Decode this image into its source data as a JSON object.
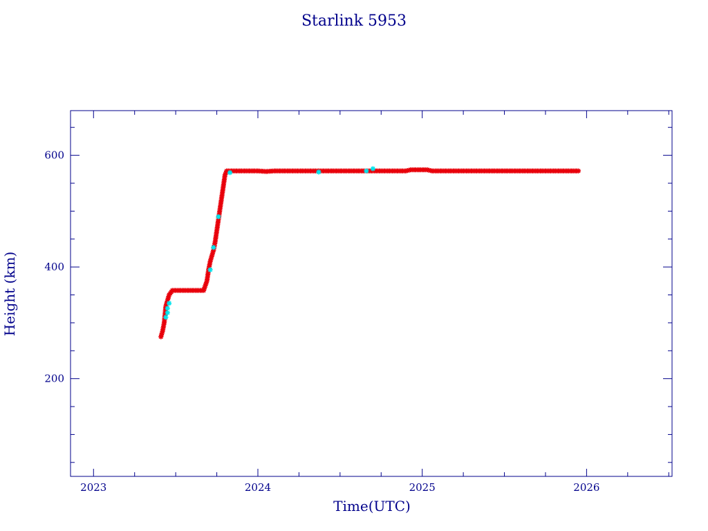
{
  "chart_data": {
    "type": "scatter",
    "title": "Starlink 5953",
    "xlabel": "Time(UTC)",
    "ylabel": "Height (km)",
    "xlim": [
      2022.86,
      2026.52
    ],
    "ylim": [
      25,
      680
    ],
    "x_ticks": [
      2023,
      2024,
      2025,
      2026
    ],
    "x_tick_labels": [
      "2023",
      "2024",
      "2025",
      "2026"
    ],
    "y_ticks": [
      200,
      400,
      600
    ],
    "y_tick_labels": [
      "200",
      "400",
      "600"
    ],
    "x_minor_step": 0.25,
    "y_minor_step": 50,
    "grid": false,
    "series": [
      {
        "color": "#e8000b",
        "marker": "star",
        "points": [
          [
            2023.41,
            275
          ],
          [
            2023.42,
            285
          ],
          [
            2023.43,
            300
          ],
          [
            2023.44,
            330
          ],
          [
            2023.46,
            350
          ],
          [
            2023.48,
            358
          ],
          [
            2023.52,
            358
          ],
          [
            2023.56,
            358
          ],
          [
            2023.6,
            358
          ],
          [
            2023.64,
            358
          ],
          [
            2023.67,
            358
          ],
          [
            2023.69,
            375
          ],
          [
            2023.7,
            395
          ],
          [
            2023.71,
            410
          ],
          [
            2023.73,
            430
          ],
          [
            2023.74,
            445
          ],
          [
            2023.75,
            465
          ],
          [
            2023.76,
            485
          ],
          [
            2023.77,
            505
          ],
          [
            2023.78,
            525
          ],
          [
            2023.79,
            545
          ],
          [
            2023.8,
            565
          ],
          [
            2023.81,
            572
          ],
          [
            2023.85,
            572
          ],
          [
            2023.9,
            572
          ],
          [
            2023.95,
            572
          ],
          [
            2024.0,
            572
          ],
          [
            2024.05,
            571
          ],
          [
            2024.1,
            572
          ],
          [
            2024.15,
            572
          ],
          [
            2024.2,
            572
          ],
          [
            2024.25,
            572
          ],
          [
            2024.3,
            572
          ],
          [
            2024.35,
            572
          ],
          [
            2024.4,
            572
          ],
          [
            2024.45,
            572
          ],
          [
            2024.5,
            572
          ],
          [
            2024.55,
            572
          ],
          [
            2024.6,
            572
          ],
          [
            2024.65,
            572
          ],
          [
            2024.7,
            572
          ],
          [
            2024.75,
            572
          ],
          [
            2024.8,
            572
          ],
          [
            2024.85,
            572
          ],
          [
            2024.9,
            572
          ],
          [
            2024.93,
            574
          ],
          [
            2024.97,
            574
          ],
          [
            2025.0,
            574
          ],
          [
            2025.03,
            574
          ],
          [
            2025.06,
            572
          ],
          [
            2025.1,
            572
          ],
          [
            2025.15,
            572
          ],
          [
            2025.2,
            572
          ],
          [
            2025.25,
            572
          ],
          [
            2025.3,
            572
          ],
          [
            2025.35,
            572
          ],
          [
            2025.4,
            572
          ],
          [
            2025.45,
            572
          ],
          [
            2025.5,
            572
          ],
          [
            2025.55,
            572
          ],
          [
            2025.6,
            572
          ],
          [
            2025.65,
            572
          ],
          [
            2025.7,
            572
          ],
          [
            2025.75,
            572
          ],
          [
            2025.8,
            572
          ],
          [
            2025.85,
            572
          ],
          [
            2025.9,
            572
          ],
          [
            2025.95,
            572
          ]
        ]
      },
      {
        "color": "#00e5ee",
        "marker": "star",
        "points": [
          [
            2023.44,
            310
          ],
          [
            2023.45,
            318
          ],
          [
            2023.45,
            326
          ],
          [
            2023.46,
            335
          ],
          [
            2023.71,
            395
          ],
          [
            2023.73,
            435
          ],
          [
            2023.76,
            490
          ],
          [
            2023.83,
            569
          ],
          [
            2024.37,
            570
          ],
          [
            2024.66,
            572
          ],
          [
            2024.7,
            576
          ]
        ]
      }
    ]
  }
}
